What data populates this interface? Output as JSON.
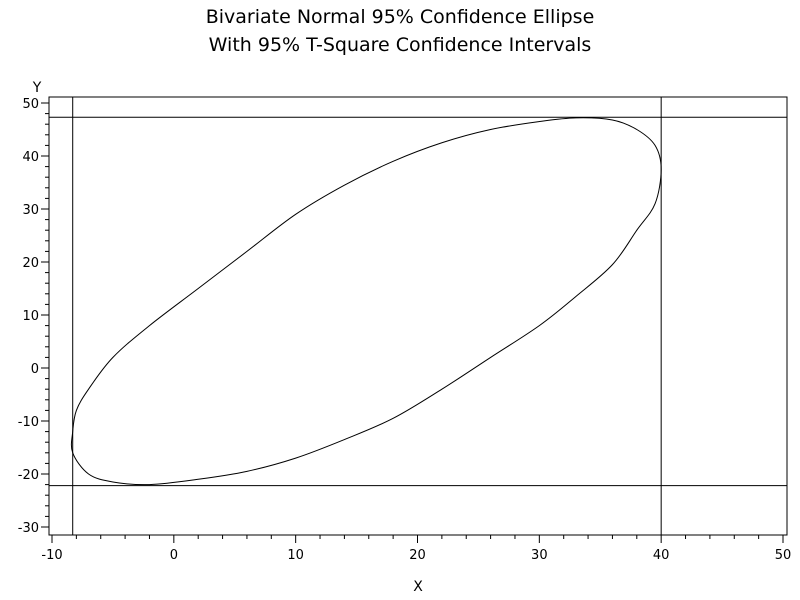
{
  "chart_data": {
    "type": "line",
    "title": "Bivariate Normal 95% Confidence Ellipse",
    "subtitle": "With 95% T-Square Confidence Intervals",
    "xlabel": "X",
    "ylabel": "Y",
    "xlim": [
      -10,
      50
    ],
    "ylim": [
      -30,
      50
    ],
    "x_ticks": [
      -10,
      0,
      10,
      20,
      30,
      40,
      50
    ],
    "y_ticks": [
      -30,
      -20,
      -10,
      0,
      10,
      20,
      30,
      40,
      50
    ],
    "x_tick_labels": [
      "-10",
      "0",
      "10",
      "20",
      "30",
      "40",
      "50"
    ],
    "y_tick_labels": [
      "-30",
      "-20",
      "-10",
      "0",
      "10",
      "20",
      "30",
      "40",
      "50"
    ],
    "grid": false,
    "series": [
      {
        "kind": "ellipse",
        "x": [
          -8.3,
          -8.0,
          -7.0,
          -5.0,
          -2.0,
          2.0,
          6.0,
          10.0,
          14.0,
          18.0,
          22.0,
          26.0,
          30.0,
          33.0,
          36.0,
          38.0,
          39.5,
          40.0,
          39.5,
          38.0,
          36.0,
          33.0,
          30.0,
          26.0,
          22.0,
          18.0,
          14.0,
          10.0,
          6.0,
          2.0,
          -2.0,
          -5.0,
          -7.0,
          -8.3
        ],
        "y": [
          -12.0,
          -8.0,
          -4.0,
          2.0,
          8.0,
          15.0,
          22.0,
          29.0,
          34.5,
          39.0,
          42.5,
          45.0,
          46.5,
          47.2,
          46.8,
          45.0,
          42.0,
          37.5,
          31.0,
          26.0,
          19.5,
          13.5,
          8.0,
          2.0,
          -4.0,
          -9.5,
          -13.5,
          -17.0,
          -19.5,
          -21.0,
          -22.0,
          -21.5,
          -20.0,
          -16.0
        ]
      }
    ],
    "reference_lines": {
      "vertical": [
        -8.3,
        40.0
      ],
      "horizontal": [
        -22.2,
        47.3
      ]
    }
  }
}
